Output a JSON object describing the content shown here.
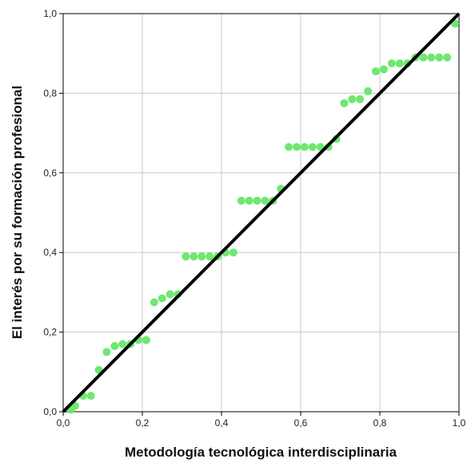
{
  "chart_data": {
    "type": "scatter",
    "title": "",
    "xlabel": "Metodología tecnológica interdisciplinaria",
    "ylabel": "El interés por su formación profesional",
    "xlim": [
      0,
      1
    ],
    "ylim": [
      0,
      1
    ],
    "x_ticks": [
      "0,0",
      "0,2",
      "0,4",
      "0,6",
      "0,8",
      "1,0"
    ],
    "y_ticks": [
      "0,0",
      "0,2",
      "0,4",
      "0,6",
      "0,8",
      "1,0"
    ],
    "grid": true,
    "point_color": "#6EE86E",
    "reference_line": {
      "from": [
        0,
        0
      ],
      "to": [
        1,
        1
      ],
      "color": "#000000"
    },
    "points": [
      [
        0.02,
        0.005
      ],
      [
        0.03,
        0.015
      ],
      [
        0.05,
        0.04
      ],
      [
        0.07,
        0.04
      ],
      [
        0.09,
        0.105
      ],
      [
        0.11,
        0.15
      ],
      [
        0.13,
        0.165
      ],
      [
        0.15,
        0.17
      ],
      [
        0.17,
        0.17
      ],
      [
        0.19,
        0.18
      ],
      [
        0.21,
        0.18
      ],
      [
        0.23,
        0.275
      ],
      [
        0.25,
        0.285
      ],
      [
        0.27,
        0.295
      ],
      [
        0.29,
        0.295
      ],
      [
        0.31,
        0.39
      ],
      [
        0.33,
        0.39
      ],
      [
        0.35,
        0.39
      ],
      [
        0.37,
        0.39
      ],
      [
        0.39,
        0.39
      ],
      [
        0.41,
        0.4
      ],
      [
        0.43,
        0.4
      ],
      [
        0.45,
        0.53
      ],
      [
        0.47,
        0.53
      ],
      [
        0.49,
        0.53
      ],
      [
        0.51,
        0.53
      ],
      [
        0.53,
        0.53
      ],
      [
        0.55,
        0.56
      ],
      [
        0.57,
        0.665
      ],
      [
        0.59,
        0.665
      ],
      [
        0.61,
        0.665
      ],
      [
        0.63,
        0.665
      ],
      [
        0.65,
        0.665
      ],
      [
        0.67,
        0.665
      ],
      [
        0.69,
        0.685
      ],
      [
        0.71,
        0.775
      ],
      [
        0.73,
        0.785
      ],
      [
        0.75,
        0.785
      ],
      [
        0.77,
        0.805
      ],
      [
        0.79,
        0.855
      ],
      [
        0.81,
        0.86
      ],
      [
        0.83,
        0.875
      ],
      [
        0.85,
        0.875
      ],
      [
        0.87,
        0.875
      ],
      [
        0.89,
        0.89
      ],
      [
        0.91,
        0.89
      ],
      [
        0.93,
        0.89
      ],
      [
        0.95,
        0.89
      ],
      [
        0.97,
        0.89
      ],
      [
        0.99,
        0.975
      ]
    ]
  }
}
